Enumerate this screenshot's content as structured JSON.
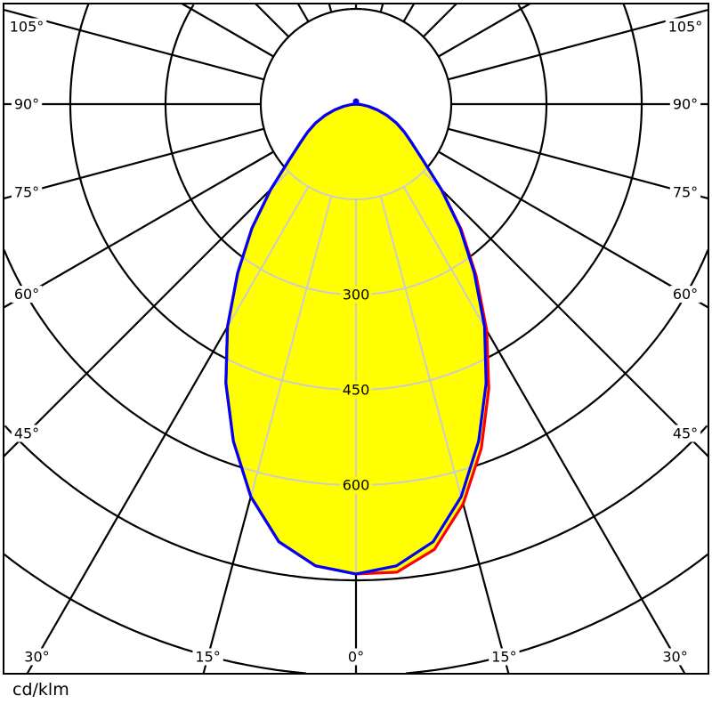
{
  "chart_data": {
    "type": "line",
    "coordinate_system": "polar",
    "unit_label": "cd/klm",
    "radial_tick_labels": [
      {
        "value": 300,
        "text": "300"
      },
      {
        "value": 450,
        "text": "450"
      },
      {
        "value": 600,
        "text": "600"
      }
    ],
    "radial_grid_step": 150,
    "angular_grid_step_deg": 15,
    "angle_labels": [
      {
        "angle": -105,
        "text": "105°"
      },
      {
        "angle": -90,
        "text": "90°"
      },
      {
        "angle": -75,
        "text": "75°"
      },
      {
        "angle": -60,
        "text": "60°"
      },
      {
        "angle": -45,
        "text": "45°"
      },
      {
        "angle": -30,
        "text": "30°"
      },
      {
        "angle": -15,
        "text": "15°"
      },
      {
        "angle": 0,
        "text": "0°"
      },
      {
        "angle": 15,
        "text": "15°"
      },
      {
        "angle": 30,
        "text": "30°"
      },
      {
        "angle": 45,
        "text": "45°"
      },
      {
        "angle": 60,
        "text": "60°"
      },
      {
        "angle": 75,
        "text": "75°"
      },
      {
        "angle": 90,
        "text": "90°"
      },
      {
        "angle": 105,
        "text": "105°"
      }
    ],
    "angles_deg": [
      0,
      5,
      10,
      15,
      20,
      25,
      30,
      35,
      40,
      45,
      50,
      55,
      60,
      65,
      70,
      75,
      80,
      85,
      90
    ],
    "series": [
      {
        "color": "#ff0000",
        "left_values": [
          740,
          730,
          700,
          640,
          565,
          485,
          405,
          325,
          255,
          190,
          138,
          108,
          88,
          70,
          52,
          35,
          20,
          8,
          0
        ],
        "right_values": [
          748,
          740,
          712,
          652,
          577,
          495,
          412,
          330,
          258,
          191,
          138,
          108,
          88,
          70,
          52,
          35,
          20,
          8,
          0
        ]
      },
      {
        "color": "#0000ff",
        "left_values": [
          740,
          730,
          700,
          640,
          565,
          485,
          405,
          325,
          255,
          190,
          138,
          108,
          88,
          70,
          52,
          35,
          20,
          8,
          0
        ],
        "right_values": [
          740,
          730,
          700,
          640,
          565,
          485,
          405,
          325,
          255,
          190,
          138,
          108,
          88,
          70,
          52,
          35,
          20,
          8,
          0
        ]
      }
    ],
    "fill_color": "#ffff00",
    "grid_color": "#000000",
    "inner_grid_color": "#cccccc"
  }
}
